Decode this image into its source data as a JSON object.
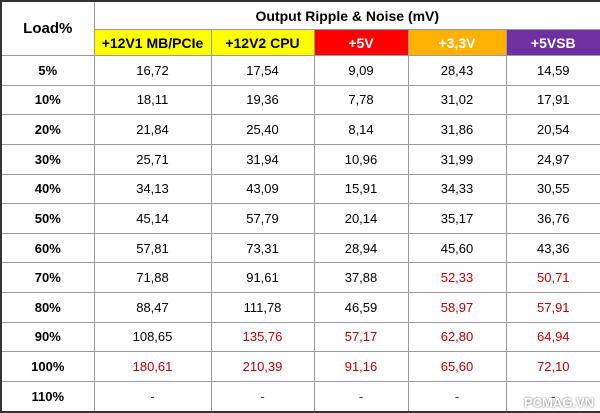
{
  "header": {
    "corner": "Load%",
    "group_title": "Output Ripple & Noise (mV)",
    "columns": [
      {
        "label": "+12V1 MB/PCIe",
        "background": "#ffff00",
        "color": "#000000"
      },
      {
        "label": "+12V2 CPU",
        "background": "#ffff00",
        "color": "#000000"
      },
      {
        "label": "+5V",
        "background": "#ff0000",
        "color": "#ffffff"
      },
      {
        "label": "+3,3V",
        "background": "#ffb000",
        "color": "#ffffff"
      },
      {
        "label": "+5VSB",
        "background": "#7030a0",
        "color": "#ffffff"
      }
    ]
  },
  "table": {
    "rows": [
      {
        "load": "5%",
        "values": [
          "16,72",
          "17,54",
          "9,09",
          "28,43",
          "14,59"
        ],
        "colors": [
          "#000000",
          "#000000",
          "#000000",
          "#000000",
          "#000000"
        ]
      },
      {
        "load": "10%",
        "values": [
          "18,11",
          "19,36",
          "7,78",
          "31,02",
          "17,91"
        ],
        "colors": [
          "#000000",
          "#000000",
          "#000000",
          "#000000",
          "#000000"
        ]
      },
      {
        "load": "20%",
        "values": [
          "21,84",
          "25,40",
          "8,14",
          "31,86",
          "20,54"
        ],
        "colors": [
          "#000000",
          "#000000",
          "#000000",
          "#000000",
          "#000000"
        ]
      },
      {
        "load": "30%",
        "values": [
          "25,71",
          "31,94",
          "10,96",
          "31,99",
          "24,97"
        ],
        "colors": [
          "#000000",
          "#000000",
          "#000000",
          "#000000",
          "#000000"
        ]
      },
      {
        "load": "40%",
        "values": [
          "34,13",
          "43,09",
          "15,91",
          "34,33",
          "30,55"
        ],
        "colors": [
          "#000000",
          "#000000",
          "#000000",
          "#000000",
          "#000000"
        ]
      },
      {
        "load": "50%",
        "values": [
          "45,14",
          "57,79",
          "20,14",
          "35,17",
          "36,76"
        ],
        "colors": [
          "#000000",
          "#000000",
          "#000000",
          "#000000",
          "#000000"
        ]
      },
      {
        "load": "60%",
        "values": [
          "57,81",
          "73,31",
          "28,94",
          "45,60",
          "43,36"
        ],
        "colors": [
          "#000000",
          "#000000",
          "#000000",
          "#000000",
          "#000000"
        ]
      },
      {
        "load": "70%",
        "values": [
          "71,88",
          "91,61",
          "37,88",
          "52,33",
          "50,71"
        ],
        "colors": [
          "#000000",
          "#000000",
          "#000000",
          "#c00000",
          "#c00000"
        ]
      },
      {
        "load": "80%",
        "values": [
          "88,47",
          "111,78",
          "46,59",
          "58,97",
          "57,91"
        ],
        "colors": [
          "#000000",
          "#000000",
          "#000000",
          "#c00000",
          "#c00000"
        ]
      },
      {
        "load": "90%",
        "values": [
          "108,65",
          "135,76",
          "57,17",
          "62,80",
          "64,94"
        ],
        "colors": [
          "#000000",
          "#c00000",
          "#c00000",
          "#c00000",
          "#c00000"
        ]
      },
      {
        "load": "100%",
        "values": [
          "180,61",
          "210,39",
          "91,16",
          "65,60",
          "72,10"
        ],
        "colors": [
          "#c00000",
          "#c00000",
          "#c00000",
          "#c00000",
          "#c00000"
        ]
      },
      {
        "load": "110%",
        "values": [
          "-",
          "-",
          "-",
          "-",
          "-"
        ],
        "colors": [
          "#c00000",
          "#c00000",
          "#c00000",
          "#c00000",
          "#c00000"
        ]
      }
    ]
  },
  "watermark": "PCMAG.VN"
}
